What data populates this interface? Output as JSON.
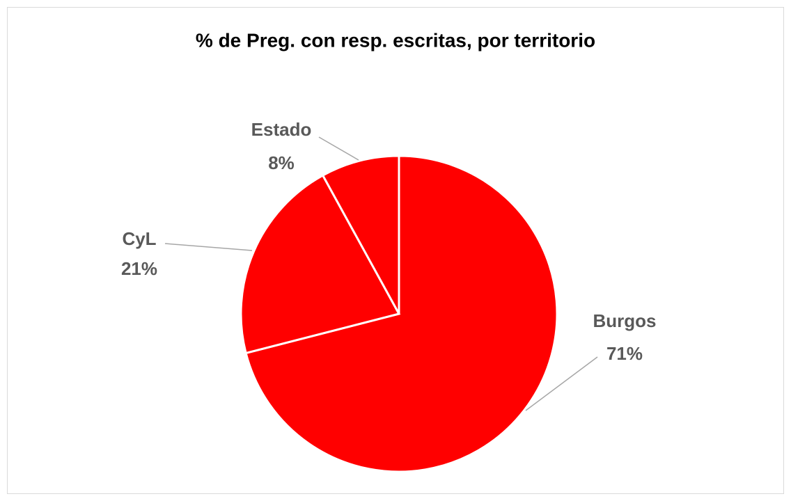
{
  "chart_data": {
    "type": "pie",
    "title": "% de Preg. con resp. escritas, por territorio",
    "categories": [
      "Burgos",
      "CyL",
      "Estado"
    ],
    "values": [
      71,
      21,
      8
    ],
    "value_labels": [
      "71%",
      "21%",
      "8%"
    ],
    "color": "#ff0000"
  }
}
